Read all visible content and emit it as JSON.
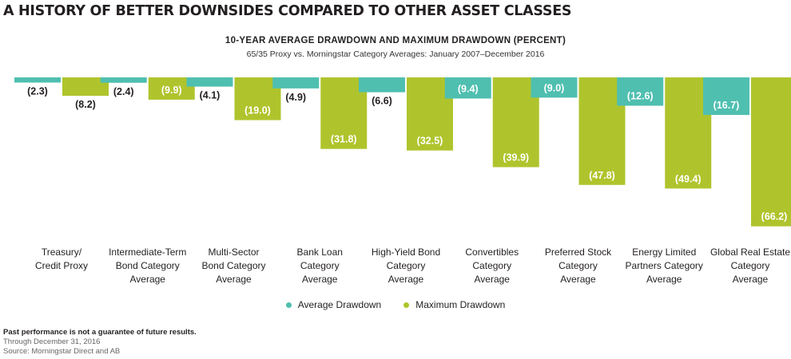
{
  "headline": "A HISTORY OF BETTER DOWNSIDES COMPARED TO OTHER ASSET CLASSES",
  "footer": {
    "note": "Past performance is not a guarantee of future results.",
    "date": "Through December 31, 2016",
    "source": "Source: Morningstar Direct and AB"
  },
  "colors": {
    "average": "#4fbfb0",
    "maximum": "#afc42c",
    "label_on_bar": "#ffffff",
    "label_off_bar": "#231f20"
  },
  "chart_data": {
    "type": "bar",
    "title": "10-YEAR AVERAGE DRAWDOWN AND MAXIMUM DRAWDOWN (PERCENT)",
    "subtitle": "65/35 Proxy vs. Morningstar Category Averages:  January 2007–December 2016",
    "orientation": "downward",
    "categories": [
      [
        "Treasury/",
        "Credit Proxy"
      ],
      [
        "Intermediate-Term",
        "Bond Category",
        "Average"
      ],
      [
        "Multi-Sector",
        "Bond Category",
        "Average"
      ],
      [
        "Bank Loan",
        "Category",
        "Average"
      ],
      [
        "High-Yield Bond",
        "Category",
        "Average"
      ],
      [
        "Convertibles",
        "Category",
        "Average"
      ],
      [
        "Preferred Stock",
        "Category",
        "Average"
      ],
      [
        "Energy Limited",
        "Partners Category",
        "Average"
      ],
      [
        "Global Real Estate",
        "Category",
        "Average"
      ]
    ],
    "series": [
      {
        "name": "Average Drawdown",
        "values": [
          2.3,
          2.4,
          4.1,
          4.9,
          6.6,
          9.4,
          9.0,
          12.6,
          16.7
        ],
        "labels": [
          "(2.3)",
          "(2.4)",
          "(4.1)",
          "(4.9)",
          "(6.6)",
          "(9.4)",
          "(9.0)",
          "(12.6)",
          "(16.7)"
        ]
      },
      {
        "name": "Maximum Drawdown",
        "values": [
          8.2,
          9.9,
          19.0,
          31.8,
          32.5,
          39.9,
          47.8,
          49.4,
          66.2
        ],
        "labels": [
          "(8.2)",
          "(9.9)",
          "(19.0)",
          "(31.8)",
          "(32.5)",
          "(39.9)",
          "(47.8)",
          "(49.4)",
          "(66.2)"
        ]
      }
    ],
    "ylim": [
      0,
      70
    ],
    "grid": false,
    "legend": "bottom-center"
  }
}
